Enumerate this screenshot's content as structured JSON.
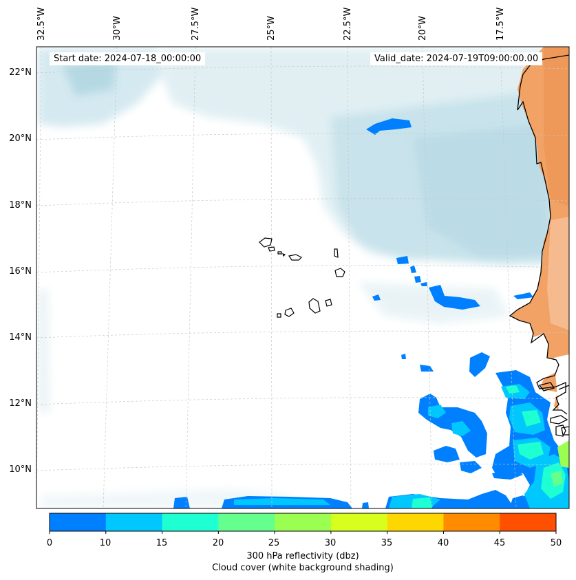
{
  "map": {
    "start_date": "Start date: 2024-07-18_00:00:00",
    "valid_date": "Valid_date: 2024-07-19T09:00:00.00",
    "longitude_labels": [
      "32.5°W",
      "30°W",
      "27.5°W",
      "25°W",
      "22.5°W",
      "20°W",
      "17.5°W"
    ],
    "latitude_labels": [
      "22°N",
      "20°N",
      "18°N",
      "16°N",
      "14°N",
      "12°N",
      "10°N"
    ]
  },
  "colorbar": {
    "ticks": [
      "0",
      "10",
      "15",
      "20",
      "25",
      "30",
      "35",
      "40",
      "45",
      "50"
    ],
    "colors": [
      "#0080ff",
      "#00c8ff",
      "#1effd2",
      "#64ff8c",
      "#9aff50",
      "#d6ff1e",
      "#ffd700",
      "#ff8c00",
      "#ff5000"
    ],
    "title": "300 hPa reflectivity (dbz)",
    "subtitle": "Cloud cover (white background shading)"
  },
  "colors": {
    "land_shading": "#f1a264",
    "cloud_shading": "#cde6ee",
    "coastline": "#000000"
  }
}
